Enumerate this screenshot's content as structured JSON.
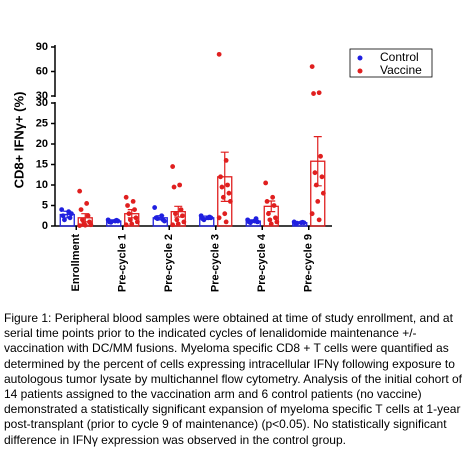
{
  "chart_data": {
    "type": "bar",
    "y_label": "CD8+ IFNγ+ (%)",
    "categories": [
      "Enrollment",
      "Pre-cycle 1",
      "Pre-cycle 2",
      "Pre-cycle 3",
      "Pre-cycle 4",
      "Pre-cycle 9"
    ],
    "series": [
      {
        "name": "Control",
        "color": "#1f1fe0",
        "values": [
          2.8,
          1.2,
          2,
          2,
          1.2,
          0.8
        ],
        "errors": [
          0.8,
          0.3,
          0.5,
          0.4,
          0.3,
          0.2
        ],
        "points": [
          [
            4,
            3.5,
            2.5,
            2,
            1.5,
            3
          ],
          [
            1.5,
            1.2,
            1,
            1.4,
            0.9,
            1.2
          ],
          [
            4.5,
            2.5,
            2,
            1.5,
            1.8,
            1.2
          ],
          [
            2.5,
            2,
            1.8,
            2.2,
            1.5,
            2
          ],
          [
            1.5,
            1.2,
            1,
            1.8,
            0.8,
            1
          ],
          [
            1,
            0.8,
            0.6,
            0.9,
            0.7,
            0.8
          ]
        ]
      },
      {
        "name": "Vaccine",
        "color": "#e01f1f",
        "values": [
          2,
          3,
          3.5,
          12,
          4.8,
          15.8
        ],
        "errors": [
          1,
          1,
          1.3,
          6,
          1.3,
          6
        ],
        "points": [
          [
            8.5,
            5.5,
            4,
            2.5,
            1.5,
            1,
            0.5,
            0.3,
            0.2,
            0.1
          ],
          [
            7,
            6,
            5,
            4,
            3,
            2,
            1.5,
            1,
            0.5,
            0.3
          ],
          [
            14.5,
            10,
            9.5,
            4,
            3,
            2.5,
            1.5,
            1,
            0.5,
            0.3
          ],
          [
            81,
            16,
            12,
            10,
            9.5,
            8,
            7,
            6,
            3,
            2,
            1
          ],
          [
            10.5,
            7,
            6,
            5,
            3,
            2,
            1.5,
            1,
            0.5
          ],
          [
            66,
            34,
            33,
            17,
            13,
            12,
            10,
            8,
            6,
            3,
            1.5
          ]
        ]
      }
    ],
    "ylim": [
      0,
      30
    ],
    "yticks": [
      0,
      5,
      10,
      15,
      20,
      25,
      30
    ],
    "ylim_break": [
      30,
      90
    ],
    "yticks_break": [
      30,
      60,
      90
    ],
    "legend": "top-right",
    "caption": "Figure 1: Peripheral blood samples were obtained at time of study enrollment, and at serial time points prior to the indicated cycles of lenalidomide maintenance +/- vaccination with DC/MM fusions. Myeloma specific CD8 + T cells were quantified as determined by the percent of cells expressing intracellular IFNγ following exposure to autologous tumor lysate by multichannel flow cytometry. Analysis of the initial cohort of 14 patients assigned to the vaccination arm and 6 control patients (no vaccine) demonstrated a statistically significant expansion of myeloma specific T cells at 1-year post-transplant (prior to cycle 9 of maintenance) (p<0.05). No statistically significant difference in IFNγ expression was observed in the control group."
  }
}
